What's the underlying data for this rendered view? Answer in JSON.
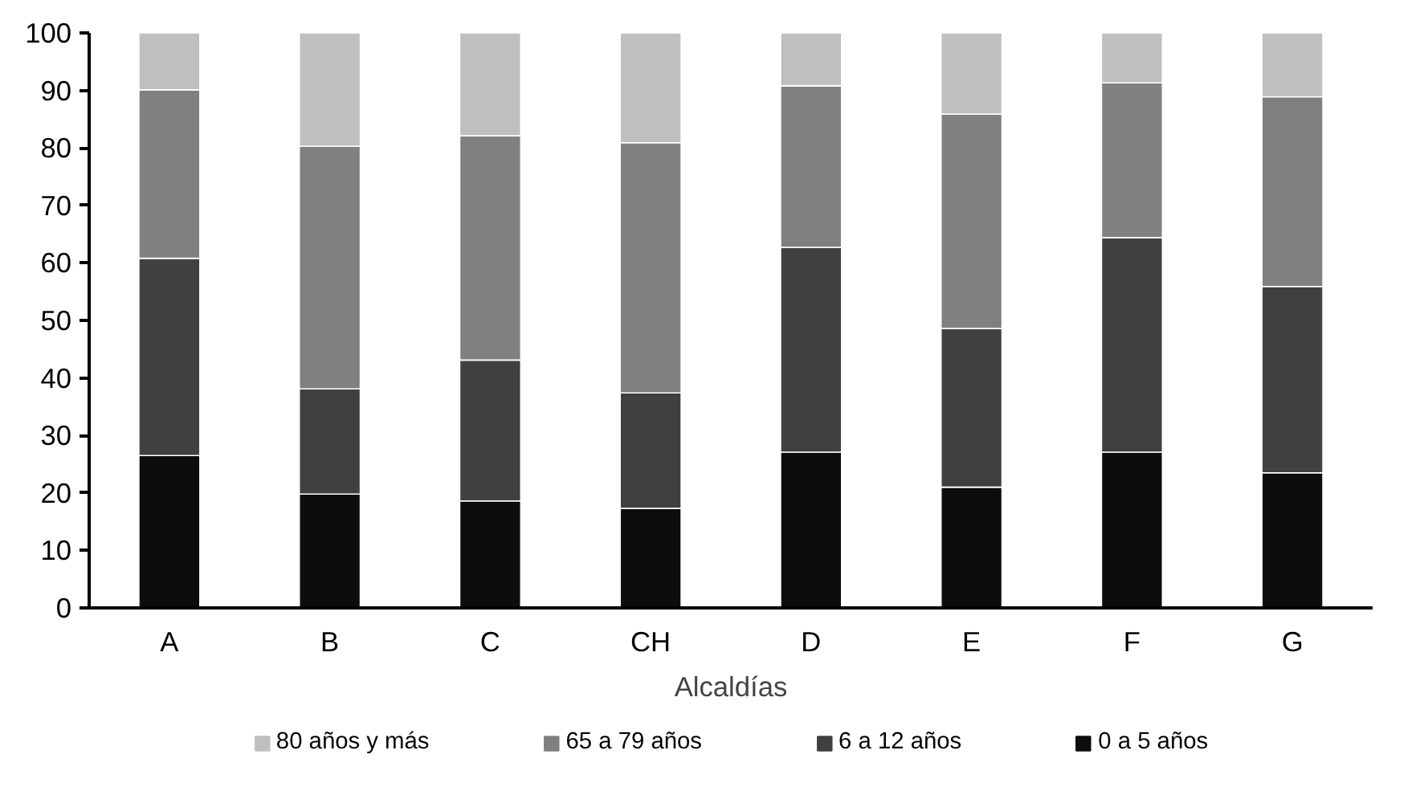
{
  "chart_data": {
    "type": "bar",
    "stacked": true,
    "xlabel": "Alcaldías",
    "categories": [
      "A",
      "B",
      "C",
      "CH",
      "D",
      "E",
      "F",
      "G"
    ],
    "series": [
      {
        "name": "0 a 5 años",
        "color": "#0d0d0d",
        "values": [
          26.5,
          19.8,
          18.6,
          17.3,
          27.1,
          21.0,
          27.1,
          23.5
        ]
      },
      {
        "name": "6 a 12 años",
        "color": "#404040",
        "values": [
          34.3,
          18.3,
          24.5,
          20.1,
          35.6,
          27.6,
          37.3,
          32.4
        ]
      },
      {
        "name": "65 a 79 años",
        "color": "#808080",
        "values": [
          29.3,
          42.2,
          39.0,
          43.5,
          28.1,
          37.3,
          26.9,
          33.0
        ]
      },
      {
        "name": "80 años y más",
        "color": "#bfbfbf",
        "values": [
          9.9,
          19.7,
          17.9,
          19.1,
          9.2,
          14.1,
          8.7,
          11.1
        ]
      }
    ],
    "ylim": [
      0,
      100
    ],
    "yticks": [
      0,
      10,
      20,
      30,
      40,
      50,
      60,
      70,
      80,
      90,
      100
    ],
    "grid": false,
    "legend": "bottom"
  }
}
